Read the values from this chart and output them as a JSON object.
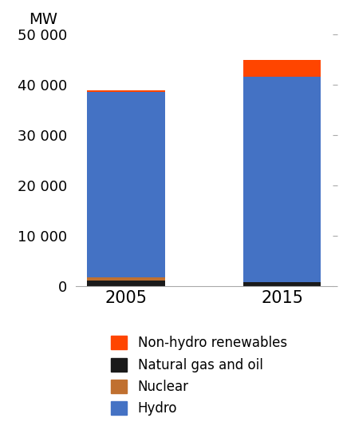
{
  "years": [
    "2005",
    "2015"
  ],
  "hydro": [
    36800,
    40800
  ],
  "nuclear": [
    700,
    0
  ],
  "natural_gas_oil": [
    1100,
    900
  ],
  "non_hydro_renewables": [
    300,
    3300
  ],
  "colors": {
    "hydro": "#4472C4",
    "nuclear": "#C07030",
    "natural_gas_oil": "#1A1A1A",
    "non_hydro_renewables": "#FF4500"
  },
  "ylim": [
    0,
    50000
  ],
  "yticks": [
    0,
    10000,
    20000,
    30000,
    40000,
    50000
  ],
  "ytick_labels": [
    "0",
    "10 000",
    "20 000",
    "30 000",
    "40 000",
    "50 000"
  ],
  "legend_labels": [
    "Non-hydro renewables",
    "Natural gas and oil",
    "Nuclear",
    "Hydro"
  ],
  "bar_width": 0.5,
  "background_color": "#ffffff",
  "tick_label_fontsize": 13,
  "xtick_fontsize": 15,
  "legend_fontsize": 12
}
